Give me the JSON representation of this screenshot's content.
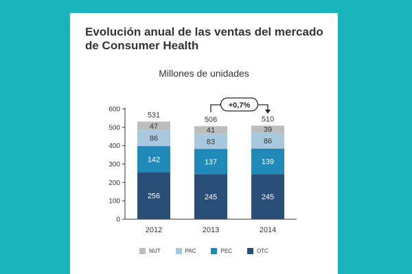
{
  "card": {
    "title_line1": "Evolución anual de las ventas del mercado",
    "title_line2": "de Consumer Health"
  },
  "chart_data": {
    "type": "bar",
    "stacked": true,
    "subtitle": "Millones de unidades",
    "categories": [
      "2012",
      "2013",
      "2014"
    ],
    "series": [
      {
        "name": "OTC",
        "color": "#284e78",
        "values": [
          256,
          245,
          245
        ]
      },
      {
        "name": "PEC",
        "color": "#1f8ab8",
        "values": [
          142,
          137,
          139
        ]
      },
      {
        "name": "PAC",
        "color": "#a8c8df",
        "values": [
          86,
          83,
          86
        ]
      },
      {
        "name": "NUT",
        "color": "#bdbdbd",
        "values": [
          47,
          41,
          39
        ]
      }
    ],
    "totals": [
      531,
      506,
      510
    ],
    "ylim": [
      0,
      600
    ],
    "yticks": [
      "0",
      "100",
      "200",
      "300",
      "400",
      "500",
      "600"
    ],
    "legend_position": "bottom",
    "annotation": {
      "text": "+0,7%",
      "from": "2013",
      "to": "2014"
    }
  }
}
